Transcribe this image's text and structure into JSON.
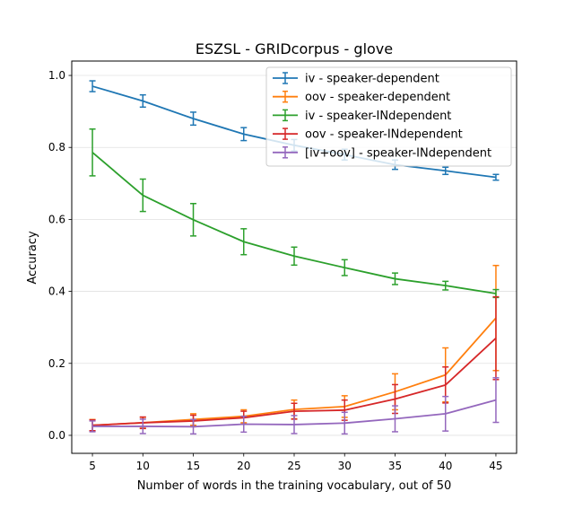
{
  "chart_data": {
    "type": "line",
    "title": "ESZSL - GRIDcorpus - glove",
    "xlabel": "Number of words in the training vocabulary, out of 50",
    "ylabel": "Accuracy",
    "x": [
      5,
      10,
      15,
      20,
      25,
      30,
      35,
      40,
      45
    ],
    "xlim": [
      2.95,
      47.05
    ],
    "ylim": [
      -0.05,
      1.04
    ],
    "xticks": [
      "5",
      "10",
      "15",
      "20",
      "25",
      "30",
      "35",
      "40",
      "45"
    ],
    "yticks": [
      "0.0",
      "0.2",
      "0.4",
      "0.6",
      "0.8",
      "1.0"
    ],
    "grid": "horizontal",
    "legend_position": "top-right",
    "series": [
      {
        "name": "iv - speaker-dependent",
        "color": "#1f77b4",
        "values": [
          0.97,
          0.929,
          0.88,
          0.837,
          0.806,
          0.78,
          0.752,
          0.735,
          0.717
        ],
        "errors": [
          0.015,
          0.017,
          0.018,
          0.018,
          0.016,
          0.015,
          0.013,
          0.01,
          0.008
        ]
      },
      {
        "name": "oov - speaker-dependent",
        "color": "#ff7f0e",
        "values": [
          0.028,
          0.035,
          0.044,
          0.053,
          0.072,
          0.08,
          0.121,
          0.168,
          0.326
        ],
        "errors": [
          0.016,
          0.015,
          0.016,
          0.018,
          0.026,
          0.03,
          0.05,
          0.075,
          0.146
        ]
      },
      {
        "name": "iv - speaker-INdependent",
        "color": "#2ca02c",
        "values": [
          0.786,
          0.667,
          0.599,
          0.538,
          0.498,
          0.466,
          0.435,
          0.416,
          0.394
        ],
        "errors": [
          0.065,
          0.045,
          0.045,
          0.036,
          0.025,
          0.022,
          0.016,
          0.012,
          0.011
        ]
      },
      {
        "name": "oov - speaker-INdependent",
        "color": "#d62728",
        "values": [
          0.028,
          0.035,
          0.04,
          0.049,
          0.067,
          0.07,
          0.101,
          0.14,
          0.27
        ],
        "errors": [
          0.015,
          0.016,
          0.016,
          0.018,
          0.022,
          0.028,
          0.04,
          0.05,
          0.115
        ]
      },
      {
        "name": "[iv+oov] - speaker-INdependent",
        "color": "#9467bd",
        "values": [
          0.025,
          0.025,
          0.024,
          0.031,
          0.03,
          0.034,
          0.046,
          0.06,
          0.098
        ],
        "errors": [
          0.015,
          0.02,
          0.02,
          0.022,
          0.025,
          0.03,
          0.036,
          0.048,
          0.062
        ]
      }
    ]
  }
}
